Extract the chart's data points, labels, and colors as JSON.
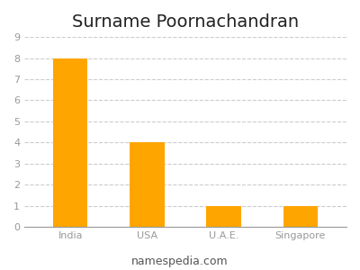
{
  "title": "Surname Poornachandran",
  "categories": [
    "India",
    "USA",
    "U.A.E.",
    "Singapore"
  ],
  "values": [
    8,
    4,
    1,
    1
  ],
  "bar_color": "#FFA500",
  "ylim": [
    0,
    9
  ],
  "yticks": [
    0,
    1,
    2,
    3,
    4,
    5,
    6,
    7,
    8,
    9
  ],
  "title_fontsize": 14,
  "tick_fontsize": 8,
  "footer_text": "namespedia.com",
  "footer_fontsize": 9,
  "background_color": "#ffffff",
  "grid_color": "#cccccc",
  "tick_color": "#999999",
  "bar_width": 0.45
}
